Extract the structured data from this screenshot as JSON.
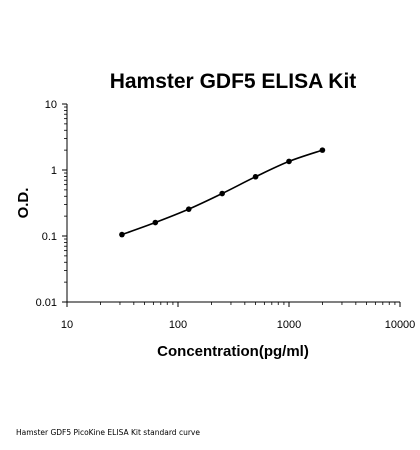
{
  "caption": "Hamster GDF5 PicoKine ELISA Kit standard curve",
  "chart_data": {
    "type": "line",
    "title": "Hamster GDF5 ELISA Kit",
    "xlabel": "Concentration(pg/ml)",
    "ylabel": "O.D.",
    "xscale": "log",
    "yscale": "log",
    "xlim": [
      10,
      10000
    ],
    "ylim": [
      0.01,
      10
    ],
    "xticks": [
      "10",
      "100",
      "1000",
      "10000"
    ],
    "yticks": [
      "0.01",
      "0.1",
      "1",
      "10"
    ],
    "grid": false,
    "legend": "none",
    "series": [
      {
        "x": [
          31.25,
          62.5,
          125,
          250,
          500,
          1000,
          2000
        ],
        "y": [
          0.105,
          0.16,
          0.255,
          0.44,
          0.79,
          1.35,
          2.0
        ]
      }
    ],
    "colors": {
      "line": "#000000",
      "marker": "#000000",
      "axis": "#000000"
    }
  }
}
